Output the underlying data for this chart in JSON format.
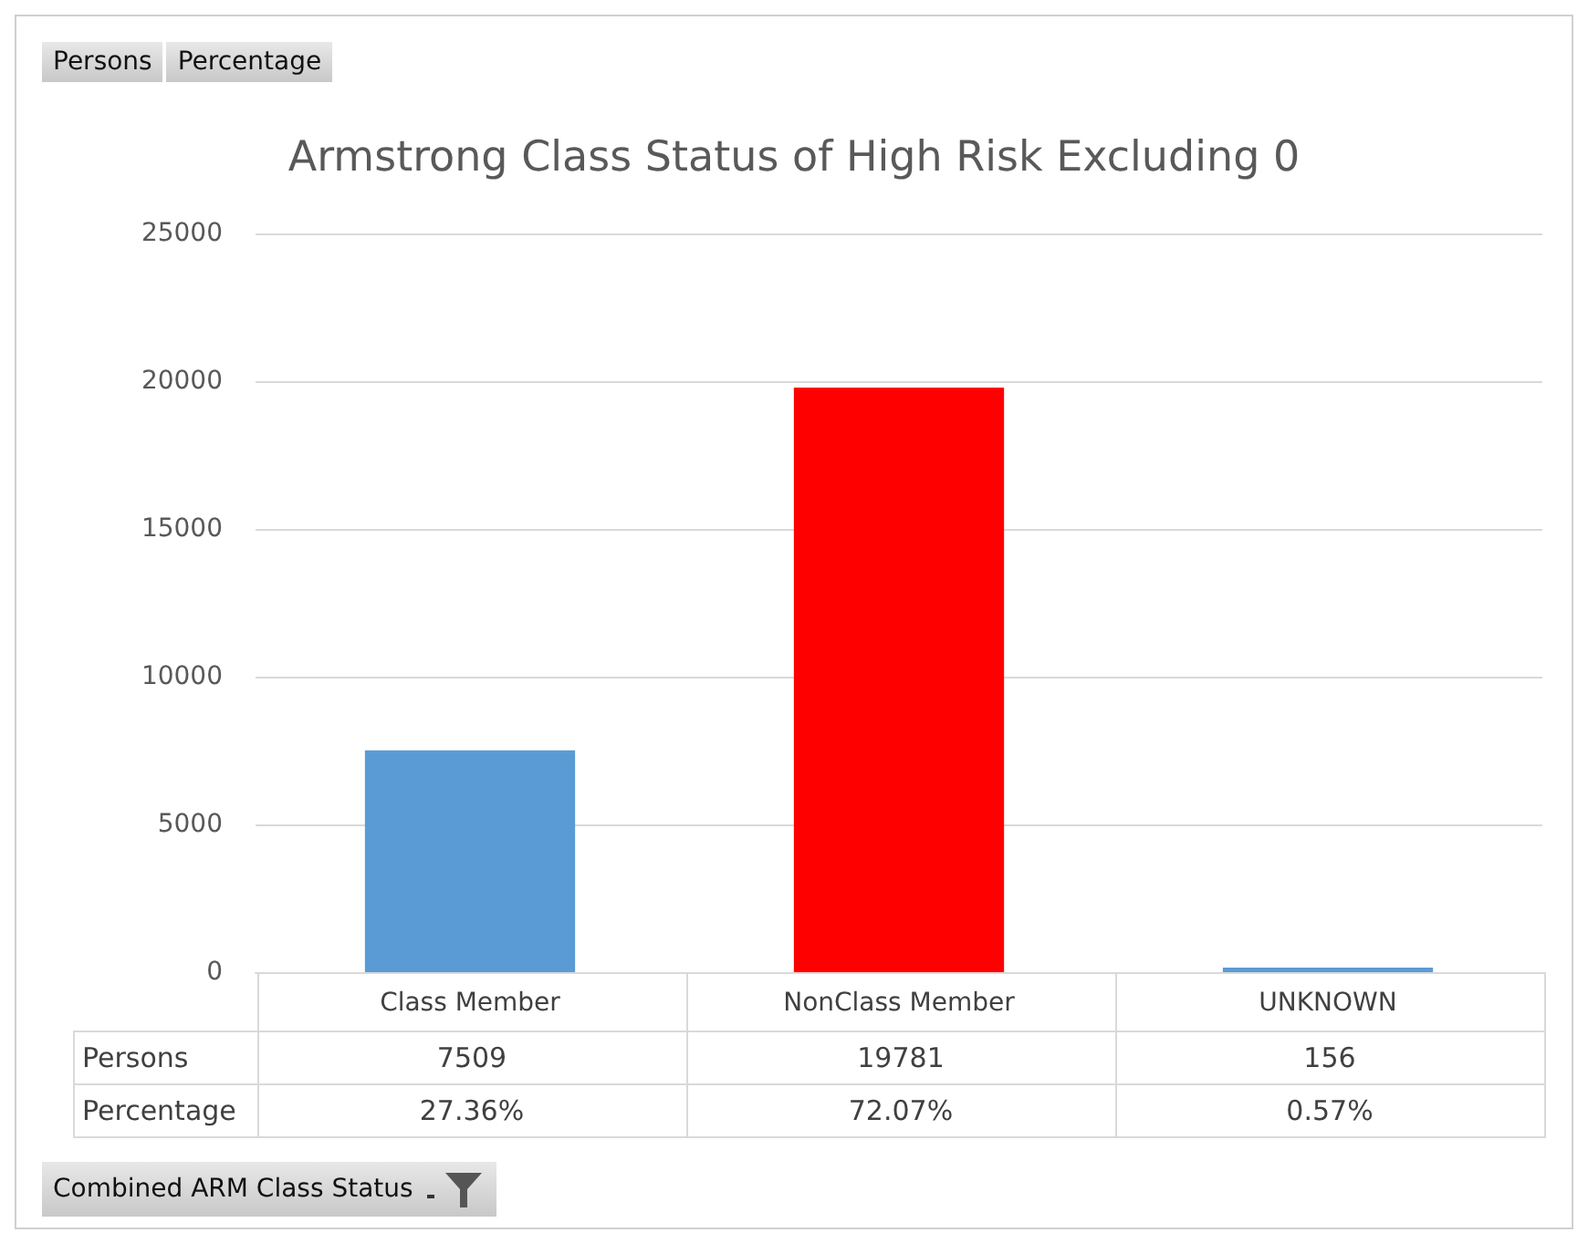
{
  "chart_data": {
    "type": "bar",
    "title": "Armstrong Class Status of High Risk Excluding 0",
    "categories": [
      "Class Member",
      "NonClass Member",
      "UNKNOWN"
    ],
    "series": [
      {
        "name": "Persons",
        "colors": [
          "#5b9bd5",
          "#ff0000",
          "#5b9bd5"
        ],
        "values": [
          7509,
          19781,
          156
        ]
      }
    ],
    "ylim": [
      0,
      25000
    ],
    "yticks": [
      0,
      5000,
      10000,
      15000,
      20000,
      25000
    ],
    "grid": "y",
    "legend": false,
    "data_labels": true,
    "annotations": [
      "Percentage",
      "27.36%",
      "72.07%",
      "0.57%",
      "Combined ARM Class Status"
    ]
  }
}
